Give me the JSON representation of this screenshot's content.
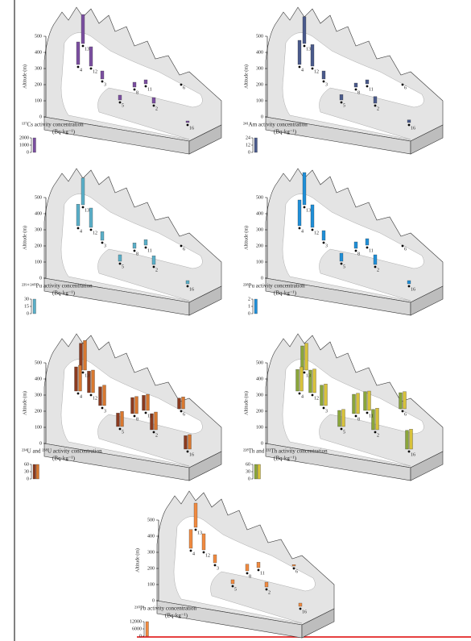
{
  "figure": {
    "axis_label": "Altitude (m)",
    "altitude_ticks": [
      500,
      400,
      300,
      200,
      100,
      0
    ],
    "site_labels": [
      "13",
      "4",
      "12",
      "3",
      "8",
      "11",
      "5",
      "2",
      "6",
      "16"
    ],
    "unit": "(Bq·kg⁻¹)",
    "panels": [
      {
        "title": "¹³⁷Cs activity concentration",
        "legend_ticks": [
          2000,
          1000,
          0
        ],
        "series": [
          {
            "color": "#7b4fa0",
            "values": [
              1800,
              1400,
              1200,
              500,
              300,
              250,
              300,
              350,
              0,
              100
            ]
          }
        ]
      },
      {
        "title": "²⁴¹Am activity concentration",
        "legend_ticks": [
          24,
          12,
          0
        ],
        "series": [
          {
            "color": "#4a5a8c",
            "values": [
              20,
              18,
              16,
              6,
              3,
              3,
              4,
              5,
              0,
              2
            ]
          }
        ]
      },
      {
        "title": "²³⁹⁺²⁴⁰Pu activity concentration",
        "legend_ticks": [
          30,
          15,
          0
        ],
        "series": [
          {
            "color": "#5aafc8",
            "values": [
              25,
              20,
              18,
              8,
              5,
              5,
              6,
              8,
              0,
              3
            ]
          }
        ]
      },
      {
        "title": "²³⁸Pu activity concentration",
        "legend_ticks": [
          2,
          1,
          0
        ],
        "series": [
          {
            "color": "#1f8fd8",
            "values": [
              2,
              1.6,
              1.4,
              0.6,
              0.4,
              0.4,
              0.5,
              0.6,
              0,
              0.2
            ]
          }
        ]
      },
      {
        "title": "²³⁴U and ²³⁸U activity concentration",
        "legend_ticks": [
          60,
          30,
          0
        ],
        "series": [
          {
            "color": "#8b3a1e",
            "values": [
              50,
              45,
              40,
              35,
              30,
              28,
              25,
              30,
              20,
              25
            ]
          },
          {
            "color": "#d9782f",
            "values": [
              55,
              48,
              42,
              38,
              32,
              30,
              28,
              33,
              22,
              27
            ]
          }
        ]
      },
      {
        "title": "²²⁸Th and ²³²Th activity concentration",
        "legend_ticks": [
          60,
          30,
          0
        ],
        "series": [
          {
            "color": "#8aa63a",
            "values": [
              45,
              40,
              42,
              38,
              36,
              35,
              30,
              38,
              30,
              35
            ]
          },
          {
            "color": "#d8c23a",
            "values": [
              50,
              45,
              44,
              40,
              38,
              36,
              32,
              40,
              32,
              37
            ]
          }
        ]
      },
      {
        "title": "²¹⁰Pb activity concentration",
        "legend_ticks": [
          12000,
          6000,
          0
        ],
        "series": [
          {
            "color": "#f08a40",
            "values": [
              9000,
              7000,
              6000,
              3000,
              2500,
              2000,
              1500,
              1800,
              500,
              1200
            ]
          }
        ]
      }
    ]
  }
}
